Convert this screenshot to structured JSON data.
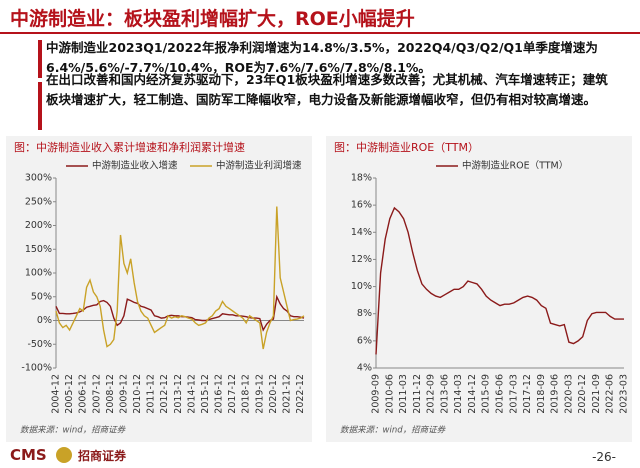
{
  "header": {
    "title": "中游制造业：板块盈利增幅扩大，ROE小幅提升"
  },
  "paragraphs": [
    "中游制造业2023Q1/2022年报净利润增速为14.8%/3.5%，2022Q4/Q3/Q2/Q1单季度增速为6.4%/5.6%/-7.7%/10.4%，ROE为7.6%/7.6%/7.8%/8.1%。",
    "在出口改善和国内经济复苏驱动下，23年Q1板块盈利增速多数改善；尤其机械、汽车增速转正；建筑板块增速扩大，轻工制造、国防军工降幅收窄，电力设备及新能源增幅收窄，但仍有相对较高增速。"
  ],
  "chart_data": [
    {
      "type": "line",
      "title": "图：中游制造业收入累计增速和净利润累计增速",
      "source": "数据来源：wind，招商证券",
      "categories": [
        "2004-12",
        null,
        null,
        null,
        "2005-12",
        null,
        null,
        null,
        "2006-12",
        null,
        null,
        null,
        "2007-12",
        null,
        null,
        null,
        "2008-12",
        null,
        null,
        null,
        "2009-12",
        null,
        null,
        null,
        "2010-12",
        null,
        null,
        null,
        "2011-12",
        null,
        null,
        null,
        "2012-12",
        null,
        null,
        null,
        "2013-12",
        null,
        null,
        null,
        "2014-12",
        null,
        null,
        null,
        "2015-12",
        null,
        null,
        null,
        "2016-12",
        null,
        null,
        null,
        "2017-12",
        null,
        null,
        null,
        "2018-12",
        null,
        null,
        null,
        "2019-12",
        null,
        null,
        null,
        "2020-12",
        null,
        null,
        null,
        "2021-12",
        null,
        null,
        null,
        "2022-12",
        null
      ],
      "series": [
        {
          "name": "中游制造业收入增速",
          "color": "#8b1a1a",
          "values": [
            30,
            15,
            15,
            14,
            14,
            15,
            16,
            18,
            22,
            28,
            30,
            32,
            33,
            40,
            42,
            38,
            30,
            5,
            -10,
            -5,
            10,
            45,
            42,
            38,
            36,
            30,
            28,
            25,
            22,
            10,
            8,
            5,
            6,
            10,
            11,
            10,
            10,
            8,
            8,
            7,
            6,
            2,
            1,
            0,
            0,
            2,
            4,
            6,
            8,
            14,
            13,
            12,
            12,
            10,
            10,
            9,
            8,
            6,
            5,
            5,
            4,
            -20,
            -8,
            0,
            3,
            50,
            35,
            25,
            20,
            10,
            8,
            8,
            7,
            5
          ]
        },
        {
          "name": "中游制造业利润增速",
          "color": "#c9a227",
          "values": [
            20,
            -5,
            -15,
            -10,
            -20,
            -5,
            10,
            25,
            20,
            70,
            85,
            60,
            50,
            30,
            -20,
            -55,
            -50,
            -40,
            20,
            180,
            120,
            100,
            130,
            80,
            40,
            20,
            10,
            5,
            -10,
            -25,
            -20,
            -15,
            -10,
            10,
            5,
            8,
            6,
            10,
            8,
            5,
            3,
            -5,
            -10,
            -8,
            -5,
            5,
            10,
            20,
            25,
            40,
            30,
            25,
            20,
            15,
            10,
            5,
            -5,
            10,
            5,
            0,
            -5,
            -60,
            -25,
            -5,
            10,
            240,
            90,
            60,
            30,
            0,
            2,
            3,
            5,
            10
          ]
        }
      ],
      "ylim": [
        -100,
        300
      ],
      "yticks": [
        {
          "value": -100,
          "label": "-100%"
        },
        {
          "value": -50,
          "label": "-50%"
        },
        {
          "value": 0,
          "label": "0%"
        },
        {
          "value": 50,
          "label": "50%"
        },
        {
          "value": 100,
          "label": "100%"
        },
        {
          "value": 150,
          "label": "150%"
        },
        {
          "value": 200,
          "label": "200%"
        },
        {
          "value": 250,
          "label": "250%"
        },
        {
          "value": 300,
          "label": "300%"
        }
      ]
    },
    {
      "type": "line",
      "title": "图：中游制造业ROE（TTM）",
      "source": "数据来源：wind，招商证券",
      "categories": [
        "2009-09",
        null,
        null,
        "2010-06",
        null,
        null,
        "2011-03",
        null,
        null,
        "2011-12",
        null,
        null,
        "2012-09",
        null,
        null,
        "2013-06",
        null,
        null,
        "2014-03",
        null,
        null,
        "2014-12",
        null,
        null,
        "2015-09",
        null,
        null,
        "2016-06",
        null,
        null,
        "2017-03",
        null,
        null,
        "2017-12",
        null,
        null,
        "2018-09",
        null,
        null,
        "2019-06",
        null,
        null,
        "2020-03",
        null,
        null,
        "2020-12",
        null,
        null,
        "2021-09",
        null,
        null,
        "2022-06",
        null,
        null,
        "2023-03"
      ],
      "series": [
        {
          "name": "中游制造业ROE（TTM）",
          "color": "#8b1a1a",
          "values": [
            5.0,
            11,
            13.5,
            15,
            15.8,
            15.5,
            15,
            14,
            12.5,
            11.2,
            10.2,
            9.8,
            9.5,
            9.3,
            9.2,
            9.4,
            9.6,
            9.8,
            9.8,
            10.0,
            10.4,
            10.3,
            10.2,
            9.8,
            9.3,
            9.0,
            8.8,
            8.6,
            8.7,
            8.7,
            8.8,
            9.0,
            9.2,
            9.3,
            9.2,
            9.0,
            8.6,
            8.4,
            7.3,
            7.2,
            7.1,
            7.2,
            5.9,
            5.8,
            6.0,
            6.3,
            7.5,
            8.0,
            8.1,
            8.1,
            8.1,
            7.8,
            7.6,
            7.6,
            7.6
          ]
        }
      ],
      "ylim": [
        4,
        18
      ],
      "yticks": [
        {
          "value": 4,
          "label": "4%"
        },
        {
          "value": 6,
          "label": "6%"
        },
        {
          "value": 8,
          "label": "8%"
        },
        {
          "value": 10,
          "label": "10%"
        },
        {
          "value": 12,
          "label": "12%"
        },
        {
          "value": 14,
          "label": "14%"
        },
        {
          "value": 16,
          "label": "16%"
        },
        {
          "value": 18,
          "label": "18%"
        }
      ]
    }
  ],
  "footer": {
    "brand": "CMS",
    "brand_cn": "招商证券",
    "page": "-26-"
  }
}
